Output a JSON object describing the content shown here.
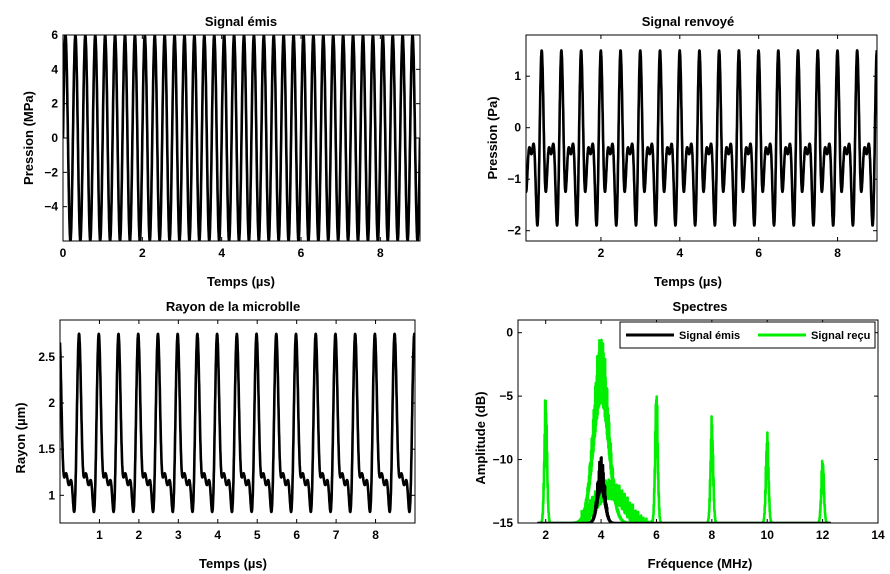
{
  "chart_data": [
    {
      "type": "line",
      "title": "Signal émis",
      "xlabel": "Temps (µs)",
      "ylabel": "Pression (MPa)",
      "xlim": [
        0,
        9
      ],
      "ylim": [
        -6,
        6
      ],
      "xticks": [
        0,
        2,
        4,
        6,
        8
      ],
      "yticks": [
        -4,
        -2,
        0,
        2,
        4,
        6
      ],
      "grid": false,
      "series": [
        {
          "kind": "sine",
          "frequency_MHz": 4,
          "amplitude": 6,
          "offset": 0,
          "color": "#000000"
        }
      ]
    },
    {
      "type": "line",
      "title": "Signal renvoyé",
      "xlabel": "Temps (µs)",
      "ylabel": "Pression (Pa)",
      "xlim": [
        0.1,
        9
      ],
      "ylim": [
        -2.2,
        1.8
      ],
      "xticks": [
        2,
        4,
        6,
        8
      ],
      "yticks": [
        -2,
        -1,
        0,
        1
      ],
      "grid": false,
      "series": [
        {
          "kind": "echo",
          "frequency_MHz": 2,
          "max": 1.5,
          "min": -1.9,
          "color": "#000000"
        }
      ]
    },
    {
      "type": "line",
      "title": "Rayon de la microblle",
      "xlabel": "Temps (µs)",
      "ylabel": "Rayon (µm)",
      "xlim": [
        0,
        9
      ],
      "ylim": [
        0.7,
        2.9
      ],
      "xticks": [
        1,
        2,
        3,
        4,
        5,
        6,
        7,
        8
      ],
      "yticks": [
        1,
        1.5,
        2,
        2.5
      ],
      "grid": false,
      "series": [
        {
          "kind": "radius",
          "frequency_MHz": 2,
          "max": 2.75,
          "min": 0.82,
          "color": "#000000"
        }
      ]
    },
    {
      "type": "line",
      "title": "Spectres",
      "xlabel": "Fréquence (MHz)",
      "ylabel": "Amplitude (dB)",
      "xlim": [
        1,
        14
      ],
      "ylim": [
        -15,
        1
      ],
      "xticks": [
        2,
        4,
        6,
        8,
        10,
        12,
        14
      ],
      "yticks": [
        -15,
        -10,
        -5,
        0
      ],
      "grid": false,
      "legend": "top-right",
      "series": [
        {
          "name": "Signal émis",
          "color": "#000000",
          "peaks": [
            {
              "x": 4,
              "y": -9.5
            }
          ]
        },
        {
          "name": "Signal reçu",
          "color": "#00ee00",
          "peaks": [
            {
              "x": 2,
              "y": -4.5
            },
            {
              "x": 4,
              "y": 0
            },
            {
              "x": 6,
              "y": -3.8
            },
            {
              "x": 8,
              "y": -6.4
            },
            {
              "x": 10,
              "y": -7.5
            },
            {
              "x": 12,
              "y": -9.6
            }
          ]
        }
      ]
    }
  ]
}
